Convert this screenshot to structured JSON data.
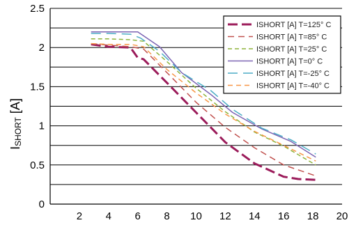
{
  "chart_data": {
    "type": "line",
    "title": "",
    "xlabel": "",
    "ylabel": {
      "main": "I",
      "sub": "SHORT",
      "unit": " [A]"
    },
    "xlim": [
      0,
      20
    ],
    "ylim": [
      0,
      2.5
    ],
    "x_ticks": [
      "2",
      "4",
      "6",
      "8",
      "10",
      "12",
      "14",
      "16",
      "18",
      "20"
    ],
    "y_ticks": [
      "0",
      "0.5",
      "1",
      "1.5",
      "2",
      "2.5"
    ],
    "grid": {
      "horizontal": true,
      "vertical": false,
      "step": 0.25
    },
    "legend_position": "top-right",
    "series": [
      {
        "name": "ISHORT [A] T=125° C",
        "color": "#9b1b5a",
        "dash": "14,6",
        "width": 3,
        "x": [
          2.8,
          4,
          5.5,
          6,
          6.4,
          8,
          10,
          12,
          14,
          16,
          17,
          18.2
        ],
        "y": [
          2.04,
          2.01,
          2.0,
          1.87,
          1.85,
          1.55,
          1.17,
          0.79,
          0.52,
          0.35,
          0.32,
          0.31
        ]
      },
      {
        "name": "ISHORT [A] T=85° C",
        "color": "#c0504d",
        "dash": "9,6",
        "width": 1.5,
        "x": [
          2.8,
          4,
          5.5,
          6.4,
          8,
          10,
          12,
          14,
          16,
          18.2
        ],
        "y": [
          2.05,
          2.03,
          2.01,
          1.98,
          1.68,
          1.3,
          0.98,
          0.72,
          0.5,
          0.36
        ]
      },
      {
        "name": "ISHORT [A] T=25° C",
        "color": "#8db33a",
        "dash": "6,4",
        "width": 1.5,
        "x": [
          2.8,
          4,
          5.5,
          6.4,
          8,
          10,
          12,
          14,
          16,
          18.2
        ],
        "y": [
          2.11,
          2.11,
          2.1,
          2.08,
          1.82,
          1.48,
          1.18,
          0.92,
          0.74,
          0.5
        ]
      },
      {
        "name": "ISHORT [A] T=0° C",
        "color": "#7b63b3",
        "dash": "",
        "width": 1.5,
        "x": [
          2.8,
          4,
          5.5,
          6,
          7.5,
          9,
          11,
          12.5,
          14.5,
          16.5,
          18.2
        ],
        "y": [
          2.2,
          2.2,
          2.2,
          2.2,
          2.01,
          1.68,
          1.4,
          1.17,
          0.96,
          0.8,
          0.6
        ]
      },
      {
        "name": "ISHORT [A] T=-25° C",
        "color": "#4bacc6",
        "dash": "14,8",
        "width": 1.5,
        "x": [
          2.8,
          4,
          5.5,
          6.2,
          7.5,
          9,
          11,
          12.5,
          14.5,
          16.5,
          18.2
        ],
        "y": [
          2.18,
          2.18,
          2.17,
          2.12,
          1.95,
          1.68,
          1.45,
          1.21,
          0.97,
          0.82,
          0.64
        ]
      },
      {
        "name": "ISHORT [A] T=-40° C",
        "color": "#f79646",
        "dash": "7,5",
        "width": 1.5,
        "x": [
          2.8,
          4,
          5.5,
          6.4,
          8,
          10,
          12,
          14,
          16,
          18.2
        ],
        "y": [
          2.05,
          2.04,
          2.04,
          2.01,
          1.72,
          1.42,
          1.15,
          0.93,
          0.75,
          0.55
        ]
      }
    ]
  }
}
